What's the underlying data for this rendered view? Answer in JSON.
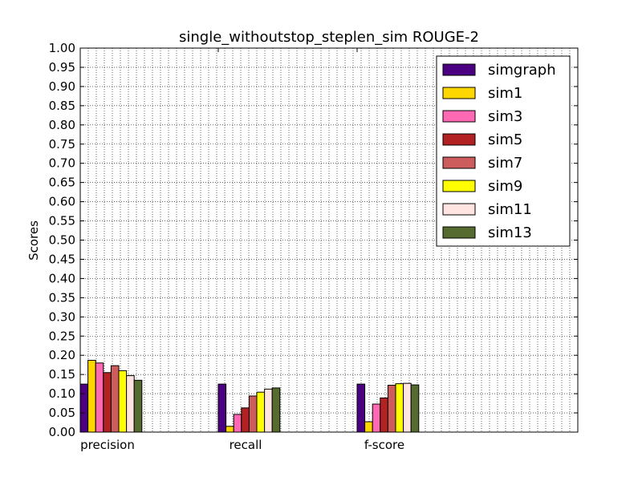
{
  "chart_data": {
    "type": "bar",
    "title": "single_withoutstop_steplen_sim ROUGE-2",
    "xlabel": "",
    "ylabel": "Scores",
    "ylim": [
      0,
      1.0
    ],
    "yticks": [
      "0.00",
      "0.05",
      "0.10",
      "0.15",
      "0.20",
      "0.25",
      "0.30",
      "0.35",
      "0.40",
      "0.45",
      "0.50",
      "0.55",
      "0.60",
      "0.65",
      "0.70",
      "0.75",
      "0.80",
      "0.85",
      "0.90",
      "0.95",
      "1.00"
    ],
    "categories": [
      "precision",
      "recall",
      "f-score"
    ],
    "grid": true,
    "legend_position": "top-right",
    "series": [
      {
        "name": "simgraph",
        "color": "#4b0082",
        "values": [
          0.125,
          0.125,
          0.125
        ]
      },
      {
        "name": "sim1",
        "color": "#ffd700",
        "values": [
          0.187,
          0.015,
          0.027
        ]
      },
      {
        "name": "sim3",
        "color": "#ff69b4",
        "values": [
          0.18,
          0.046,
          0.073
        ]
      },
      {
        "name": "sim5",
        "color": "#b22222",
        "values": [
          0.155,
          0.063,
          0.089
        ]
      },
      {
        "name": "sim7",
        "color": "#cd5c5c",
        "values": [
          0.173,
          0.094,
          0.122
        ]
      },
      {
        "name": "sim9",
        "color": "#ffff00",
        "values": [
          0.16,
          0.104,
          0.126
        ]
      },
      {
        "name": "sim11",
        "color": "#ffe4e1",
        "values": [
          0.147,
          0.112,
          0.127
        ]
      },
      {
        "name": "sim13",
        "color": "#556b2f",
        "values": [
          0.135,
          0.115,
          0.123
        ]
      }
    ]
  }
}
